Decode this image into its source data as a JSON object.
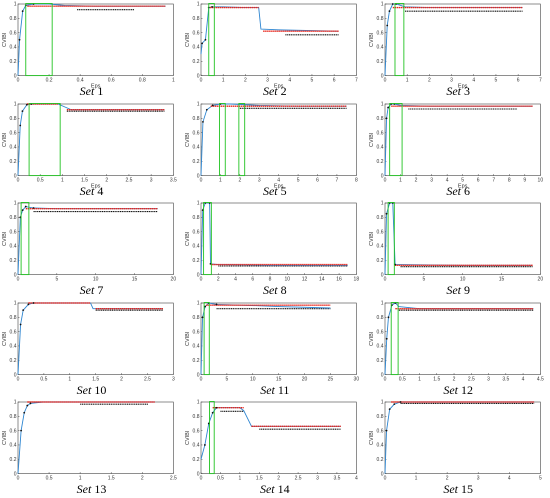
{
  "layout_rows": 5,
  "layout_cols": 3,
  "colors": {
    "line": "#2e86d1",
    "marker_red": "#e8261c",
    "marker_black": "#111111",
    "highlight_box": "#22c322",
    "axis": "#444444"
  },
  "chart_data": [
    {
      "type": "line",
      "caption_word": "Set",
      "caption_num": "1",
      "xlabel": "Eps",
      "ylabel": "CVIBI",
      "xlim": [
        0,
        1
      ],
      "xticks": [
        0,
        0.2,
        0.4,
        0.6,
        0.8,
        1
      ],
      "ylim": [
        0,
        1
      ],
      "yticks": [
        0,
        0.2,
        0.4,
        0.6,
        0.8,
        1
      ],
      "line_x": [
        0,
        0.01,
        0.03,
        0.05,
        0.1,
        0.2,
        0.3,
        0.5,
        0.7,
        0.95
      ],
      "line_y": [
        0,
        0.5,
        0.9,
        0.98,
        1,
        1,
        0.98,
        0.97,
        0.97,
        0.97
      ],
      "red_segments": [
        [
          0.06,
          0.95,
          0.97
        ]
      ],
      "black_segments": [
        [
          0.38,
          0.75,
          0.92
        ]
      ],
      "highlight_boxes": [
        [
          0.05,
          0.22
        ]
      ]
    },
    {
      "type": "line",
      "caption_word": "Set",
      "caption_num": "2",
      "xlabel": "Eps",
      "ylabel": "CVIBI",
      "xlim": [
        0,
        7
      ],
      "xticks": [
        0,
        1,
        2,
        3,
        4,
        5,
        6,
        7
      ],
      "ylim": [
        0,
        1
      ],
      "yticks": [
        0,
        0.2,
        0.4,
        0.6,
        0.8,
        1
      ],
      "line_x": [
        0,
        0.05,
        0.2,
        0.35,
        0.5,
        1,
        2,
        2.6,
        2.7,
        3.5,
        6.2
      ],
      "line_y": [
        0.3,
        0.45,
        0.5,
        0.95,
        0.96,
        0.96,
        0.95,
        0.95,
        0.65,
        0.64,
        0.62
      ],
      "red_segments": [
        [
          0.4,
          2.6,
          0.95
        ],
        [
          2.8,
          6.2,
          0.62
        ]
      ],
      "black_segments": [
        [
          3.8,
          6.2,
          0.57
        ]
      ],
      "highlight_boxes": [
        [
          0.35,
          0.6
        ]
      ]
    },
    {
      "type": "line",
      "caption_word": "Set",
      "caption_num": "3",
      "xlabel": "Eps",
      "ylabel": "CVIBI",
      "xlim": [
        0,
        7
      ],
      "xticks": [
        0,
        1,
        2,
        3,
        4,
        5,
        6,
        7
      ],
      "ylim": [
        0,
        1
      ],
      "yticks": [
        0,
        0.2,
        0.4,
        0.6,
        0.8,
        1
      ],
      "line_x": [
        0,
        0.1,
        0.2,
        0.35,
        0.5,
        0.9,
        2,
        4,
        6.2
      ],
      "line_y": [
        0,
        0.7,
        0.9,
        1,
        1,
        0.96,
        0.95,
        0.95,
        0.95
      ],
      "red_segments": [
        [
          0.35,
          6.2,
          0.95
        ]
      ],
      "black_segments": [
        [
          0.9,
          6.2,
          0.9
        ]
      ],
      "highlight_boxes": [
        [
          0.45,
          0.85
        ]
      ]
    },
    {
      "type": "line",
      "caption_word": "Set",
      "caption_num": "4",
      "xlabel": "Eps",
      "ylabel": "CVIBI",
      "xlim": [
        0,
        3.5
      ],
      "xticks": [
        0,
        0.5,
        1,
        1.5,
        2,
        2.5,
        3,
        3.5
      ],
      "ylim": [
        0,
        1
      ],
      "yticks": [
        0,
        0.2,
        0.4,
        0.6,
        0.8,
        1
      ],
      "line_x": [
        0,
        0.05,
        0.1,
        0.2,
        0.3,
        0.9,
        1.2,
        2,
        3.3
      ],
      "line_y": [
        0,
        0.7,
        0.9,
        0.99,
        1,
        1,
        0.92,
        0.92,
        0.92
      ],
      "red_segments": [
        [
          0.2,
          0.9,
          1
        ],
        [
          1.1,
          3.3,
          0.92
        ]
      ],
      "black_segments": [
        [
          1.1,
          3.3,
          0.9
        ]
      ],
      "highlight_boxes": [
        [
          0.25,
          0.95
        ]
      ]
    },
    {
      "type": "line",
      "caption_word": "Set",
      "caption_num": "5",
      "xlabel": "Eps",
      "ylabel": "CVIBI",
      "xlim": [
        0,
        8
      ],
      "xticks": [
        0,
        1,
        2,
        3,
        4,
        5,
        6,
        7,
        8
      ],
      "ylim": [
        0,
        1
      ],
      "yticks": [
        0,
        0.2,
        0.4,
        0.6,
        0.8,
        1
      ],
      "line_x": [
        0,
        0.1,
        0.3,
        0.6,
        1,
        1.5,
        3,
        5,
        7.5
      ],
      "line_y": [
        0,
        0.75,
        0.92,
        0.98,
        1,
        1,
        0.98,
        0.97,
        0.97
      ],
      "red_segments": [
        [
          0.5,
          7.5,
          0.97
        ]
      ],
      "black_segments": [
        [
          2,
          7.5,
          0.94
        ]
      ],
      "highlight_boxes": [
        [
          0.95,
          1.25
        ],
        [
          1.95,
          2.25
        ]
      ]
    },
    {
      "type": "line",
      "caption_word": "Set",
      "caption_num": "6",
      "xlabel": "Eps",
      "ylabel": "CVIBI",
      "xlim": [
        0,
        10
      ],
      "xticks": [
        0,
        1,
        2,
        3,
        4,
        5,
        6,
        7,
        8,
        9,
        10
      ],
      "ylim": [
        0,
        1
      ],
      "yticks": [
        0,
        0.2,
        0.4,
        0.6,
        0.8,
        1
      ],
      "line_x": [
        0,
        0.1,
        0.2,
        0.4,
        0.6,
        1,
        3,
        6,
        9.5
      ],
      "line_y": [
        0,
        0.8,
        0.95,
        1,
        1,
        0.98,
        0.97,
        0.97,
        0.97
      ],
      "red_segments": [
        [
          0.4,
          9.5,
          0.97
        ]
      ],
      "black_segments": [
        [
          1.5,
          8.5,
          0.93
        ]
      ],
      "highlight_boxes": [
        [
          0.3,
          1.1
        ]
      ]
    },
    {
      "type": "line",
      "caption_word": "Set",
      "caption_num": "7",
      "xlabel": "",
      "ylabel": "CVIBI",
      "xlim": [
        0,
        20
      ],
      "xticks": [
        0,
        5,
        10,
        15,
        20
      ],
      "ylim": [
        0,
        1
      ],
      "yticks": [
        0,
        0.2,
        0.4,
        0.6,
        0.8,
        1
      ],
      "line_x": [
        0,
        0.3,
        0.6,
        1,
        2,
        5,
        10,
        18
      ],
      "line_y": [
        0,
        0.8,
        0.9,
        0.95,
        0.93,
        0.92,
        0.92,
        0.92
      ],
      "red_segments": [
        [
          1,
          18,
          0.92
        ]
      ],
      "black_segments": [
        [
          2,
          18,
          0.88
        ]
      ],
      "highlight_boxes": [
        [
          0.4,
          1.4
        ]
      ]
    },
    {
      "type": "line",
      "caption_word": "Set",
      "caption_num": "8",
      "xlabel": "",
      "ylabel": "CVIBI",
      "xlim": [
        0,
        18
      ],
      "xticks": [
        0,
        2,
        4,
        6,
        8,
        10,
        12,
        14,
        16,
        18
      ],
      "ylim": [
        0,
        1
      ],
      "yticks": [
        0,
        0.2,
        0.4,
        0.6,
        0.8,
        1
      ],
      "line_x": [
        0,
        0.2,
        0.5,
        1,
        1.1,
        2,
        8,
        17
      ],
      "line_y": [
        0,
        0.9,
        1,
        1,
        0.15,
        0.14,
        0.13,
        0.13
      ],
      "red_segments": [
        [
          1.2,
          17,
          0.14
        ]
      ],
      "black_segments": [
        [
          2,
          17,
          0.12
        ]
      ],
      "highlight_boxes": [
        [
          0.3,
          1.2
        ]
      ]
    },
    {
      "type": "line",
      "caption_word": "Set",
      "caption_num": "9",
      "xlabel": "",
      "ylabel": "CVIBI",
      "xlim": [
        0,
        20
      ],
      "xticks": [
        0,
        5,
        10,
        15,
        20
      ],
      "ylim": [
        0,
        1
      ],
      "yticks": [
        0,
        0.2,
        0.4,
        0.6,
        0.8,
        1
      ],
      "line_x": [
        0,
        0.2,
        0.6,
        1,
        1.3,
        2,
        10,
        19
      ],
      "line_y": [
        0,
        0.85,
        1,
        1,
        0.14,
        0.14,
        0.13,
        0.13
      ],
      "red_segments": [
        [
          1.3,
          19,
          0.13
        ]
      ],
      "black_segments": [
        [
          2,
          19,
          0.11
        ]
      ],
      "highlight_boxes": [
        [
          0.4,
          1.2
        ]
      ]
    },
    {
      "type": "line",
      "caption_word": "Set",
      "caption_num": "10",
      "xlabel": "",
      "ylabel": "CVIBI",
      "xlim": [
        0,
        3
      ],
      "xticks": [
        0,
        0.5,
        1,
        1.5,
        2,
        2.5,
        3
      ],
      "ylim": [
        0,
        1
      ],
      "yticks": [
        0,
        0.2,
        0.4,
        0.6,
        0.8,
        1
      ],
      "line_x": [
        0,
        0.05,
        0.1,
        0.2,
        0.3,
        1.4,
        1.45,
        2,
        2.8
      ],
      "line_y": [
        0,
        0.7,
        0.9,
        0.98,
        1,
        1,
        0.92,
        0.92,
        0.92
      ],
      "red_segments": [
        [
          0.2,
          1.4,
          1
        ],
        [
          1.5,
          2.8,
          0.92
        ]
      ],
      "black_segments": [
        [
          1.5,
          2.8,
          0.9
        ]
      ],
      "highlight_boxes": []
    },
    {
      "type": "line",
      "caption_word": "Set",
      "caption_num": "11",
      "xlabel": "",
      "ylabel": "CVIBI",
      "xlim": [
        0,
        30
      ],
      "xticks": [
        0,
        5,
        10,
        15,
        20,
        25,
        30
      ],
      "ylim": [
        0,
        1
      ],
      "yticks": [
        0,
        0.2,
        0.4,
        0.6,
        0.8,
        1
      ],
      "line_x": [
        0,
        0.3,
        0.8,
        1.5,
        3,
        8,
        15,
        25
      ],
      "line_y": [
        0,
        0.8,
        0.95,
        1,
        0.98,
        0.97,
        0.95,
        0.93
      ],
      "red_segments": [
        [
          1,
          25,
          0.97
        ]
      ],
      "black_segments": [
        [
          3,
          25,
          0.92
        ]
      ],
      "highlight_boxes": [
        [
          0.6,
          1.6
        ]
      ]
    },
    {
      "type": "line",
      "caption_word": "Set",
      "caption_num": "12",
      "xlabel": "",
      "ylabel": "CVIBI",
      "xlim": [
        0,
        4.5
      ],
      "xticks": [
        0,
        0.5,
        1,
        1.5,
        2,
        2.5,
        3,
        3.5,
        4,
        4.5
      ],
      "ylim": [
        0,
        1
      ],
      "yticks": [
        0,
        0.2,
        0.4,
        0.6,
        0.8,
        1
      ],
      "line_x": [
        0,
        0.05,
        0.1,
        0.2,
        0.3,
        0.4,
        1,
        2,
        4.3
      ],
      "line_y": [
        0,
        0.5,
        0.8,
        0.97,
        1,
        0.95,
        0.92,
        0.92,
        0.92
      ],
      "red_segments": [
        [
          0.3,
          4.3,
          0.92
        ]
      ],
      "black_segments": [
        [
          0.4,
          4.3,
          0.9
        ]
      ],
      "highlight_boxes": [
        [
          0.18,
          0.38
        ]
      ]
    },
    {
      "type": "line",
      "caption_word": "Set",
      "caption_num": "13",
      "xlabel": "",
      "ylabel": "CVIBI",
      "xlim": [
        0,
        2.5
      ],
      "xticks": [
        0,
        0.5,
        1,
        1.5,
        2,
        2.5
      ],
      "ylim": [
        0,
        1
      ],
      "yticks": [
        0,
        0.2,
        0.4,
        0.6,
        0.8,
        1
      ],
      "line_x": [
        0,
        0.05,
        0.1,
        0.15,
        0.2,
        0.4,
        1,
        2.2
      ],
      "line_y": [
        0,
        0.6,
        0.85,
        0.95,
        0.98,
        1,
        1,
        1
      ],
      "red_segments": [
        [
          0.15,
          2.2,
          1
        ]
      ],
      "black_segments": [
        [
          1,
          2.1,
          0.97
        ]
      ],
      "highlight_boxes": []
    },
    {
      "type": "line",
      "caption_word": "Set",
      "caption_num": "14",
      "xlabel": "",
      "ylabel": "CVIBI",
      "xlim": [
        0,
        4
      ],
      "xticks": [
        0,
        0.5,
        1,
        1.5,
        2,
        2.5,
        3,
        3.5,
        4
      ],
      "ylim": [
        0,
        1
      ],
      "yticks": [
        0,
        0.2,
        0.4,
        0.6,
        0.8,
        1
      ],
      "line_x": [
        0,
        0.1,
        0.2,
        0.3,
        0.4,
        1,
        1.1,
        1.3,
        2,
        3.6
      ],
      "line_y": [
        0.2,
        0.4,
        0.7,
        0.85,
        0.92,
        0.92,
        0.88,
        0.66,
        0.66,
        0.66
      ],
      "red_segments": [
        [
          0.3,
          1.1,
          0.92
        ],
        [
          1.3,
          3.6,
          0.66
        ]
      ],
      "black_segments": [
        [
          0.5,
          1.1,
          0.87
        ],
        [
          1.5,
          3.6,
          0.62
        ]
      ],
      "highlight_boxes": [
        [
          0.22,
          0.34
        ]
      ]
    },
    {
      "type": "line",
      "caption_word": "Set",
      "caption_num": "15",
      "xlabel": "",
      "ylabel": "CVIBI",
      "xlim": [
        0,
        5
      ],
      "xticks": [
        0,
        1,
        2,
        3,
        4,
        5
      ],
      "ylim": [
        0,
        1
      ],
      "yticks": [
        0,
        0.2,
        0.4,
        0.6,
        0.8,
        1
      ],
      "line_x": [
        0,
        0.05,
        0.15,
        0.3,
        0.5,
        1,
        3,
        4.8
      ],
      "line_y": [
        0,
        0.6,
        0.9,
        0.97,
        1,
        1,
        1,
        1
      ],
      "red_segments": [
        [
          0.2,
          4.8,
          1
        ]
      ],
      "black_segments": [
        [
          0.5,
          4.8,
          0.98
        ]
      ],
      "highlight_boxes": []
    }
  ]
}
